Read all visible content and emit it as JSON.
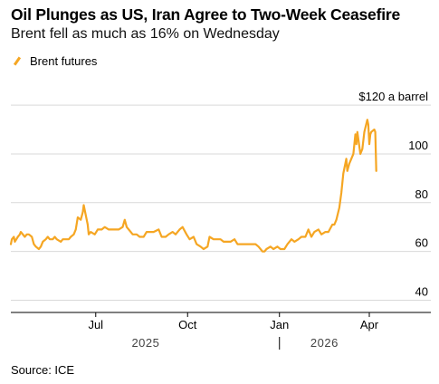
{
  "chart_data": {
    "type": "line",
    "title": "Oil Plunges as US, Iran Agree to Two-Week Ceasefire",
    "subtitle": "Brent fell as much as 16% on Wednesday",
    "source": "Source: ICE",
    "series": [
      {
        "name": "Brent futures",
        "color": "#f5a623",
        "points": [
          [
            "2025-04-07",
            63
          ],
          [
            "2025-04-08",
            65
          ],
          [
            "2025-04-10",
            66
          ],
          [
            "2025-04-11",
            64
          ],
          [
            "2025-04-14",
            66
          ],
          [
            "2025-04-16",
            67
          ],
          [
            "2025-04-17",
            68
          ],
          [
            "2025-04-21",
            66
          ],
          [
            "2025-04-23",
            67
          ],
          [
            "2025-04-25",
            67
          ],
          [
            "2025-04-28",
            66
          ],
          [
            "2025-04-30",
            63
          ],
          [
            "2025-05-02",
            62
          ],
          [
            "2025-05-05",
            61
          ],
          [
            "2025-05-07",
            62
          ],
          [
            "2025-05-09",
            64
          ],
          [
            "2025-05-12",
            65
          ],
          [
            "2025-05-14",
            66
          ],
          [
            "2025-05-16",
            65
          ],
          [
            "2025-05-19",
            65
          ],
          [
            "2025-05-21",
            66
          ],
          [
            "2025-05-23",
            65
          ],
          [
            "2025-05-27",
            64
          ],
          [
            "2025-05-29",
            65
          ],
          [
            "2025-06-02",
            65
          ],
          [
            "2025-06-04",
            65
          ],
          [
            "2025-06-06",
            66
          ],
          [
            "2025-06-09",
            67
          ],
          [
            "2025-06-11",
            69
          ],
          [
            "2025-06-13",
            74
          ],
          [
            "2025-06-16",
            73
          ],
          [
            "2025-06-18",
            76
          ],
          [
            "2025-06-19",
            79
          ],
          [
            "2025-06-20",
            77
          ],
          [
            "2025-06-23",
            71
          ],
          [
            "2025-06-24",
            67
          ],
          [
            "2025-06-26",
            68
          ],
          [
            "2025-06-30",
            67
          ],
          [
            "2025-07-03",
            69
          ],
          [
            "2025-07-07",
            69
          ],
          [
            "2025-07-10",
            70
          ],
          [
            "2025-07-14",
            69
          ],
          [
            "2025-07-17",
            69
          ],
          [
            "2025-07-21",
            69
          ],
          [
            "2025-07-24",
            69
          ],
          [
            "2025-07-28",
            70
          ],
          [
            "2025-07-30",
            73
          ],
          [
            "2025-08-01",
            70
          ],
          [
            "2025-08-05",
            68
          ],
          [
            "2025-08-07",
            67
          ],
          [
            "2025-08-11",
            67
          ],
          [
            "2025-08-14",
            66
          ],
          [
            "2025-08-18",
            66
          ],
          [
            "2025-08-21",
            68
          ],
          [
            "2025-08-25",
            68
          ],
          [
            "2025-08-28",
            68
          ],
          [
            "2025-09-02",
            69
          ],
          [
            "2025-09-05",
            66
          ],
          [
            "2025-09-09",
            66
          ],
          [
            "2025-09-12",
            67
          ],
          [
            "2025-09-16",
            68
          ],
          [
            "2025-09-19",
            67
          ],
          [
            "2025-09-23",
            69
          ],
          [
            "2025-09-26",
            70
          ],
          [
            "2025-09-30",
            67
          ],
          [
            "2025-10-03",
            65
          ],
          [
            "2025-10-07",
            66
          ],
          [
            "2025-10-10",
            63
          ],
          [
            "2025-10-14",
            62
          ],
          [
            "2025-10-17",
            61
          ],
          [
            "2025-10-21",
            62
          ],
          [
            "2025-10-23",
            66
          ],
          [
            "2025-10-27",
            65
          ],
          [
            "2025-10-30",
            65
          ],
          [
            "2025-11-03",
            65
          ],
          [
            "2025-11-06",
            64
          ],
          [
            "2025-11-10",
            64
          ],
          [
            "2025-11-13",
            64
          ],
          [
            "2025-11-17",
            65
          ],
          [
            "2025-11-20",
            63
          ],
          [
            "2025-11-24",
            63
          ],
          [
            "2025-11-27",
            63
          ],
          [
            "2025-12-01",
            63
          ],
          [
            "2025-12-04",
            63
          ],
          [
            "2025-12-08",
            63
          ],
          [
            "2025-12-11",
            62
          ],
          [
            "2025-12-15",
            60
          ],
          [
            "2025-12-17",
            60
          ],
          [
            "2025-12-19",
            61
          ],
          [
            "2025-12-23",
            62
          ],
          [
            "2025-12-26",
            61
          ],
          [
            "2025-12-30",
            62
          ],
          [
            "2026-01-02",
            61
          ],
          [
            "2026-01-06",
            61
          ],
          [
            "2026-01-09",
            63
          ],
          [
            "2026-01-13",
            65
          ],
          [
            "2026-01-16",
            64
          ],
          [
            "2026-01-20",
            65
          ],
          [
            "2026-01-23",
            66
          ],
          [
            "2026-01-27",
            66
          ],
          [
            "2026-01-30",
            69
          ],
          [
            "2026-02-02",
            66
          ],
          [
            "2026-02-05",
            68
          ],
          [
            "2026-02-09",
            69
          ],
          [
            "2026-02-12",
            67
          ],
          [
            "2026-02-16",
            68
          ],
          [
            "2026-02-19",
            68
          ],
          [
            "2026-02-23",
            71
          ],
          [
            "2026-02-25",
            71
          ],
          [
            "2026-02-27",
            73
          ],
          [
            "2026-03-02",
            78
          ],
          [
            "2026-03-04",
            84
          ],
          [
            "2026-03-06",
            92
          ],
          [
            "2026-03-09",
            98
          ],
          [
            "2026-03-10",
            93
          ],
          [
            "2026-03-12",
            96
          ],
          [
            "2026-03-16",
            100
          ],
          [
            "2026-03-18",
            108
          ],
          [
            "2026-03-19",
            104
          ],
          [
            "2026-03-20",
            109
          ],
          [
            "2026-03-23",
            100
          ],
          [
            "2026-03-25",
            102
          ],
          [
            "2026-03-27",
            109
          ],
          [
            "2026-03-30",
            114
          ],
          [
            "2026-03-31",
            112
          ],
          [
            "2026-04-01",
            104
          ],
          [
            "2026-04-02",
            108
          ],
          [
            "2026-04-03",
            109
          ],
          [
            "2026-04-06",
            110
          ],
          [
            "2026-04-07",
            109
          ],
          [
            "2026-04-08",
            93
          ]
        ]
      }
    ],
    "xaxis": {
      "type": "date",
      "range": [
        "2025-04-07",
        "2026-04-30"
      ],
      "ticks": [
        {
          "date": "2025-07-01",
          "label": "Jul"
        },
        {
          "date": "2025-10-01",
          "label": "Oct"
        },
        {
          "date": "2026-01-01",
          "label": "Jan"
        },
        {
          "date": "2026-04-01",
          "label": "Apr"
        }
      ],
      "year_labels": [
        {
          "center": "2025-08-20",
          "label": "2025"
        },
        {
          "center": "2026-02-15",
          "label": "2026"
        }
      ],
      "year_divider": "2026-01-01"
    },
    "yaxis": {
      "range": [
        35,
        123
      ],
      "ticks": [
        {
          "value": 120,
          "label": "$120 a barrel"
        },
        {
          "value": 100,
          "label": "100"
        },
        {
          "value": 80,
          "label": "80"
        },
        {
          "value": 60,
          "label": "60"
        },
        {
          "value": 40,
          "label": "40"
        }
      ],
      "position": "right",
      "grid": true
    },
    "legend": {
      "position": "top-left"
    }
  }
}
